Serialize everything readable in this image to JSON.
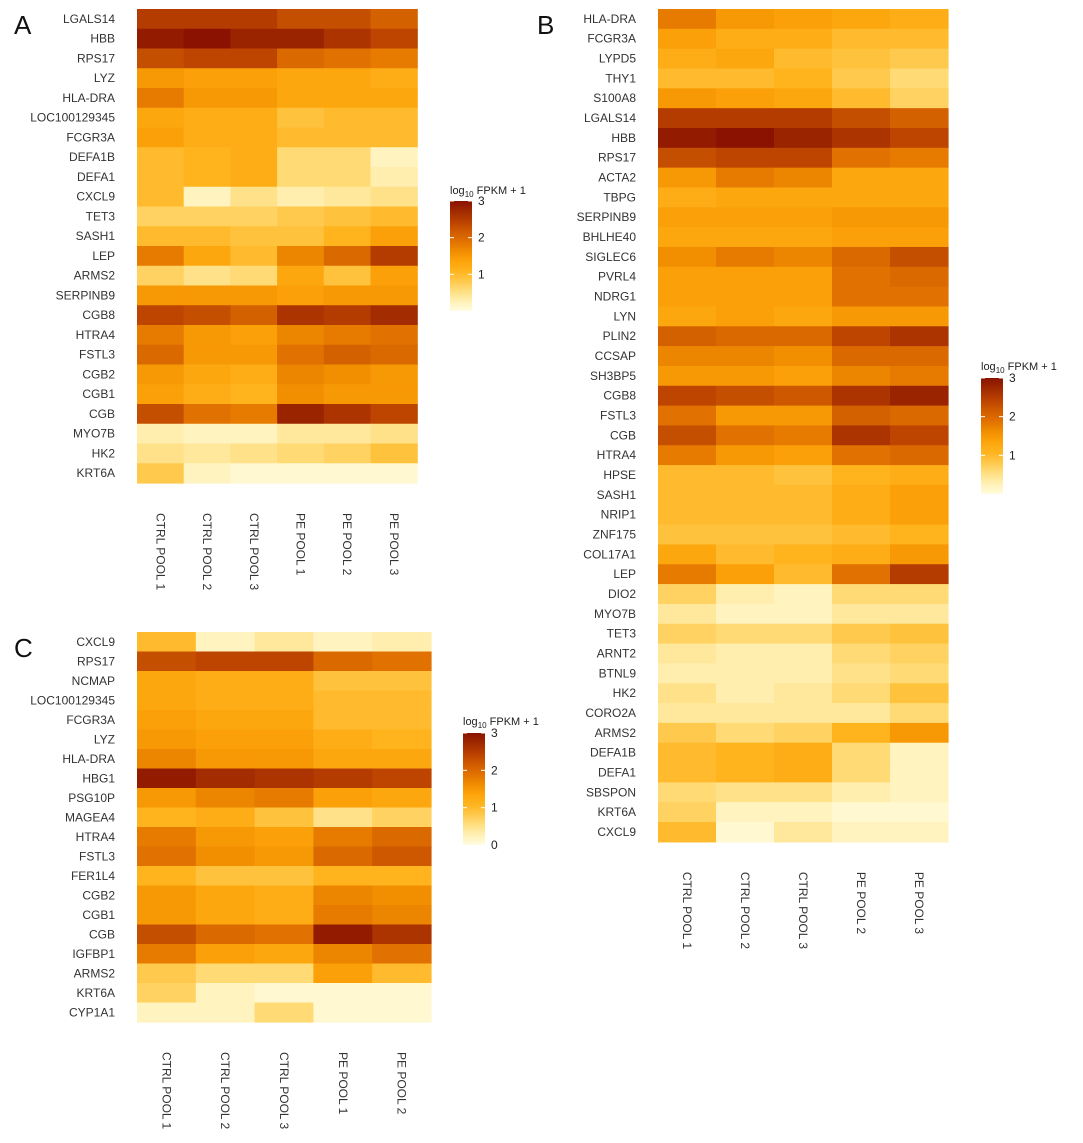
{
  "scale": {
    "stops": [
      "#fffce0",
      "#fff0b3",
      "#ffde80",
      "#ffc84a",
      "#ffb41e",
      "#fda30a",
      "#f08c00",
      "#e07000",
      "#cf5a00",
      "#b94000",
      "#a02a00",
      "#8b1200"
    ],
    "max": 3,
    "legend_title_prefix": "log",
    "legend_title_sub": "10",
    "legend_title_suffix": " FPKM + 1"
  },
  "chart_data": [
    {
      "type": "heatmap",
      "panel": "A",
      "rows": [
        "LGALS14",
        "HBB",
        "RPS17",
        "LYZ",
        "HLA-DRA",
        "LOC100129345",
        "FCGR3A",
        "DEFA1B",
        "DEFA1",
        "CXCL9",
        "TET3",
        "SASH1",
        "LEP",
        "ARMS2",
        "SERPINB9",
        "CGB8",
        "HTRA4",
        "FSTL3",
        "CGB2",
        "CGB1",
        "CGB",
        "MYO7B",
        "HK2",
        "KRT6A"
      ],
      "columns": [
        "CTRL POOL 1",
        "CTRL POOL 2",
        "CTRL POOL 3",
        "PE POOL 1",
        "PE POOL 2",
        "PE POOL 3"
      ],
      "values": [
        [
          2.5,
          2.5,
          2.5,
          2.3,
          2.3,
          2.1
        ],
        [
          2.9,
          3.0,
          2.8,
          2.8,
          2.6,
          2.4
        ],
        [
          2.3,
          2.4,
          2.4,
          2.0,
          1.9,
          1.8
        ],
        [
          1.5,
          1.4,
          1.4,
          1.3,
          1.3,
          1.2
        ],
        [
          1.8,
          1.5,
          1.5,
          1.3,
          1.3,
          1.3
        ],
        [
          1.3,
          1.2,
          1.2,
          0.9,
          1.0,
          1.0
        ],
        [
          1.4,
          1.2,
          1.2,
          1.0,
          1.0,
          1.0
        ],
        [
          1.0,
          1.1,
          1.2,
          0.6,
          0.6,
          0.2
        ],
        [
          1.0,
          1.1,
          1.2,
          0.6,
          0.6,
          0.3
        ],
        [
          1.0,
          0.2,
          0.5,
          0.3,
          0.4,
          0.5
        ],
        [
          0.7,
          0.7,
          0.7,
          0.8,
          0.9,
          1.0
        ],
        [
          1.0,
          1.0,
          0.9,
          0.9,
          1.1,
          1.4
        ],
        [
          1.8,
          1.3,
          1.0,
          1.7,
          2.0,
          2.5
        ],
        [
          0.7,
          0.5,
          0.6,
          1.3,
          0.9,
          1.4
        ],
        [
          1.5,
          1.5,
          1.5,
          1.4,
          1.5,
          1.5
        ],
        [
          2.4,
          2.3,
          2.1,
          2.6,
          2.5,
          2.7
        ],
        [
          1.8,
          1.5,
          1.4,
          1.7,
          1.8,
          1.9
        ],
        [
          2.0,
          1.5,
          1.5,
          1.9,
          2.1,
          2.0
        ],
        [
          1.5,
          1.3,
          1.2,
          1.7,
          1.6,
          1.5
        ],
        [
          1.4,
          1.2,
          1.1,
          1.6,
          1.5,
          1.5
        ],
        [
          2.3,
          1.9,
          1.8,
          2.8,
          2.6,
          2.4
        ],
        [
          0.3,
          0.2,
          0.2,
          0.4,
          0.4,
          0.5
        ],
        [
          0.5,
          0.4,
          0.5,
          0.6,
          0.7,
          0.9
        ],
        [
          0.8,
          0.2,
          0.1,
          0.1,
          0.1,
          0.1
        ]
      ],
      "legend_ticks": [
        1,
        2,
        3
      ]
    },
    {
      "type": "heatmap",
      "panel": "B",
      "rows": [
        "HLA-DRA",
        "FCGR3A",
        "LYPD5",
        "THY1",
        "S100A8",
        "LGALS14",
        "HBB",
        "RPS17",
        "ACTA2",
        "TBPG",
        "SERPINB9",
        "BHLHE40",
        "SIGLEC6",
        "PVRL4",
        "NDRG1",
        "LYN",
        "PLIN2",
        "CCSAP",
        "SH3BP5",
        "CGB8",
        "FSTL3",
        "CGB",
        "HTRA4",
        "HPSE",
        "SASH1",
        "NRIP1",
        "ZNF175",
        "COL17A1",
        "LEP",
        "DIO2",
        "MYO7B",
        "TET3",
        "ARNT2",
        "BTNL9",
        "HK2",
        "CORO2A",
        "ARMS2",
        "DEFA1B",
        "DEFA1",
        "SBSPON",
        "KRT6A",
        "CXCL9"
      ],
      "columns": [
        "CTRL POOL 1",
        "CTRL POOL 2",
        "CTRL POOL 3",
        "PE POOL 2",
        "PE POOL 3"
      ],
      "values": [
        [
          1.8,
          1.5,
          1.4,
          1.3,
          1.2
        ],
        [
          1.4,
          1.2,
          1.2,
          1.0,
          1.0
        ],
        [
          1.2,
          1.3,
          1.0,
          0.9,
          0.8
        ],
        [
          1.0,
          1.0,
          1.1,
          0.8,
          0.6
        ],
        [
          1.5,
          1.4,
          1.3,
          1.0,
          0.7
        ],
        [
          2.5,
          2.5,
          2.5,
          2.3,
          2.1
        ],
        [
          2.9,
          3.0,
          2.8,
          2.6,
          2.4
        ],
        [
          2.3,
          2.4,
          2.4,
          1.9,
          1.8
        ],
        [
          1.5,
          1.8,
          1.7,
          1.3,
          1.3
        ],
        [
          1.2,
          1.3,
          1.3,
          1.3,
          1.3
        ],
        [
          1.4,
          1.4,
          1.4,
          1.5,
          1.5
        ],
        [
          1.3,
          1.3,
          1.3,
          1.4,
          1.4
        ],
        [
          1.6,
          1.8,
          1.7,
          2.0,
          2.3
        ],
        [
          1.4,
          1.4,
          1.4,
          1.9,
          2.0
        ],
        [
          1.4,
          1.4,
          1.4,
          1.9,
          1.9
        ],
        [
          1.3,
          1.4,
          1.3,
          1.5,
          1.5
        ],
        [
          2.1,
          2.0,
          2.0,
          2.4,
          2.6
        ],
        [
          1.7,
          1.7,
          1.6,
          2.0,
          2.0
        ],
        [
          1.5,
          1.5,
          1.4,
          1.7,
          1.8
        ],
        [
          2.4,
          2.3,
          2.2,
          2.6,
          2.8
        ],
        [
          1.9,
          1.5,
          1.5,
          2.1,
          2.0
        ],
        [
          2.3,
          1.9,
          1.8,
          2.6,
          2.4
        ],
        [
          1.8,
          1.5,
          1.4,
          1.9,
          2.0
        ],
        [
          1.0,
          1.0,
          0.9,
          1.1,
          1.2
        ],
        [
          1.0,
          1.0,
          1.0,
          1.2,
          1.4
        ],
        [
          1.0,
          1.0,
          1.0,
          1.2,
          1.4
        ],
        [
          0.9,
          0.9,
          0.9,
          1.0,
          1.1
        ],
        [
          1.3,
          1.0,
          1.1,
          1.2,
          1.5
        ],
        [
          1.8,
          1.4,
          1.0,
          1.9,
          2.5
        ],
        [
          0.7,
          0.3,
          0.2,
          0.6,
          0.6
        ],
        [
          0.4,
          0.2,
          0.2,
          0.4,
          0.4
        ],
        [
          0.7,
          0.6,
          0.6,
          0.8,
          0.9
        ],
        [
          0.4,
          0.3,
          0.3,
          0.6,
          0.7
        ],
        [
          0.3,
          0.3,
          0.3,
          0.5,
          0.6
        ],
        [
          0.5,
          0.3,
          0.4,
          0.6,
          0.9
        ],
        [
          0.4,
          0.4,
          0.4,
          0.4,
          0.6
        ],
        [
          0.8,
          0.6,
          0.7,
          1.1,
          1.5
        ],
        [
          1.0,
          1.1,
          1.2,
          0.6,
          0.2
        ],
        [
          1.0,
          1.1,
          1.2,
          0.6,
          0.2
        ],
        [
          0.6,
          0.5,
          0.5,
          0.3,
          0.2
        ],
        [
          0.7,
          0.2,
          0.2,
          0.1,
          0.1
        ],
        [
          1.0,
          0.1,
          0.4,
          0.2,
          0.2
        ]
      ],
      "legend_ticks": [
        1,
        2,
        3
      ]
    },
    {
      "type": "heatmap",
      "panel": "C",
      "rows": [
        "CXCL9",
        "RPS17",
        "NCMAP",
        "LOC100129345",
        "FCGR3A",
        "LYZ",
        "HLA-DRA",
        "HBG1",
        "PSG10P",
        "MAGEA4",
        "HTRA4",
        "FSTL3",
        "FER1L4",
        "CGB2",
        "CGB1",
        "CGB",
        "IGFBP1",
        "ARMS2",
        "KRT6A",
        "CYP1A1"
      ],
      "columns": [
        "CTRL POOL 1",
        "CTRL POOL 2",
        "CTRL POOL 3",
        "PE POOL 1",
        "PE POOL 2"
      ],
      "values": [
        [
          1.0,
          0.2,
          0.4,
          0.2,
          0.3
        ],
        [
          2.3,
          2.4,
          2.4,
          2.0,
          1.9
        ],
        [
          1.3,
          1.2,
          1.2,
          0.9,
          0.9
        ],
        [
          1.3,
          1.2,
          1.2,
          1.0,
          1.0
        ],
        [
          1.4,
          1.3,
          1.3,
          1.0,
          1.0
        ],
        [
          1.5,
          1.4,
          1.4,
          1.2,
          1.1
        ],
        [
          1.7,
          1.5,
          1.5,
          1.3,
          1.3
        ],
        [
          2.9,
          2.7,
          2.6,
          2.5,
          2.4
        ],
        [
          1.5,
          1.7,
          1.8,
          1.4,
          1.3
        ],
        [
          1.1,
          1.2,
          0.9,
          0.5,
          0.7
        ],
        [
          1.8,
          1.5,
          1.4,
          1.8,
          2.0
        ],
        [
          1.9,
          1.6,
          1.5,
          2.0,
          2.2
        ],
        [
          1.1,
          0.9,
          0.9,
          1.1,
          1.1
        ],
        [
          1.5,
          1.3,
          1.2,
          1.7,
          1.6
        ],
        [
          1.5,
          1.3,
          1.2,
          1.8,
          1.7
        ],
        [
          2.3,
          2.0,
          1.9,
          2.9,
          2.6
        ],
        [
          1.8,
          1.4,
          1.3,
          1.7,
          1.9
        ],
        [
          0.8,
          0.6,
          0.6,
          1.4,
          1.0
        ],
        [
          0.7,
          0.2,
          0.1,
          0.1,
          0.1
        ],
        [
          0.2,
          0.2,
          0.6,
          0.1,
          0.1
        ]
      ],
      "legend_ticks": [
        0,
        1,
        2,
        3
      ]
    }
  ]
}
